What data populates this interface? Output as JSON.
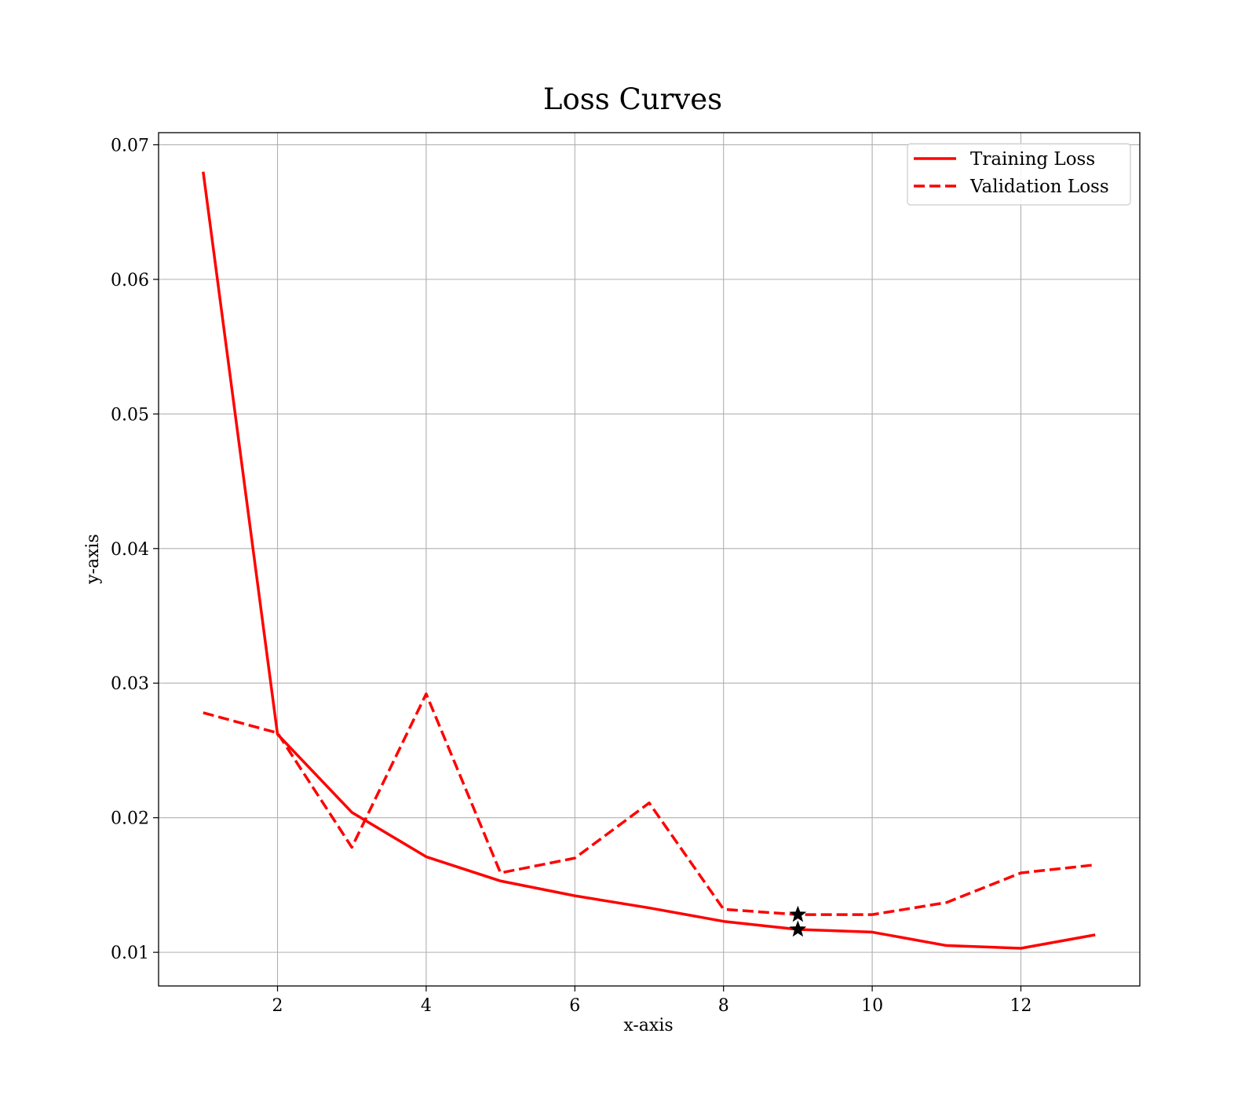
{
  "chart_data": {
    "type": "line",
    "title": "Loss Curves",
    "xlabel": "x-axis",
    "ylabel": "y-axis",
    "xlim": [
      0.4,
      13.6
    ],
    "ylim": [
      0.0075,
      0.0709
    ],
    "xticks": [
      2,
      4,
      6,
      8,
      10,
      12
    ],
    "xtick_labels": [
      "2",
      "4",
      "6",
      "8",
      "10",
      "12"
    ],
    "yticks": [
      0.01,
      0.02,
      0.03,
      0.04,
      0.05,
      0.06,
      0.07
    ],
    "ytick_labels": [
      "0.01",
      "0.02",
      "0.03",
      "0.04",
      "0.05",
      "0.06",
      "0.07"
    ],
    "grid": true,
    "legend_position": "top-right",
    "x": [
      1,
      2,
      3,
      4,
      5,
      6,
      7,
      8,
      9,
      10,
      11,
      12,
      13
    ],
    "series": [
      {
        "name": "Training Loss",
        "style": "solid",
        "color": "#ff0000",
        "values": [
          0.068,
          0.0262,
          0.0204,
          0.0171,
          0.0153,
          0.0142,
          0.0133,
          0.0123,
          0.0117,
          0.0115,
          0.0105,
          0.0103,
          0.0113
        ]
      },
      {
        "name": "Validation Loss",
        "style": "dashed",
        "color": "#ff0000",
        "values": [
          0.0278,
          0.0263,
          0.0178,
          0.0292,
          0.0159,
          0.017,
          0.0211,
          0.0132,
          0.0128,
          0.0128,
          0.0137,
          0.0159,
          0.0165
        ]
      }
    ],
    "markers": [
      {
        "series": "Training Loss",
        "x": 9,
        "y": 0.0117,
        "shape": "star",
        "color": "#000000"
      },
      {
        "series": "Validation Loss",
        "x": 9,
        "y": 0.0128,
        "shape": "star",
        "color": "#000000"
      }
    ]
  }
}
